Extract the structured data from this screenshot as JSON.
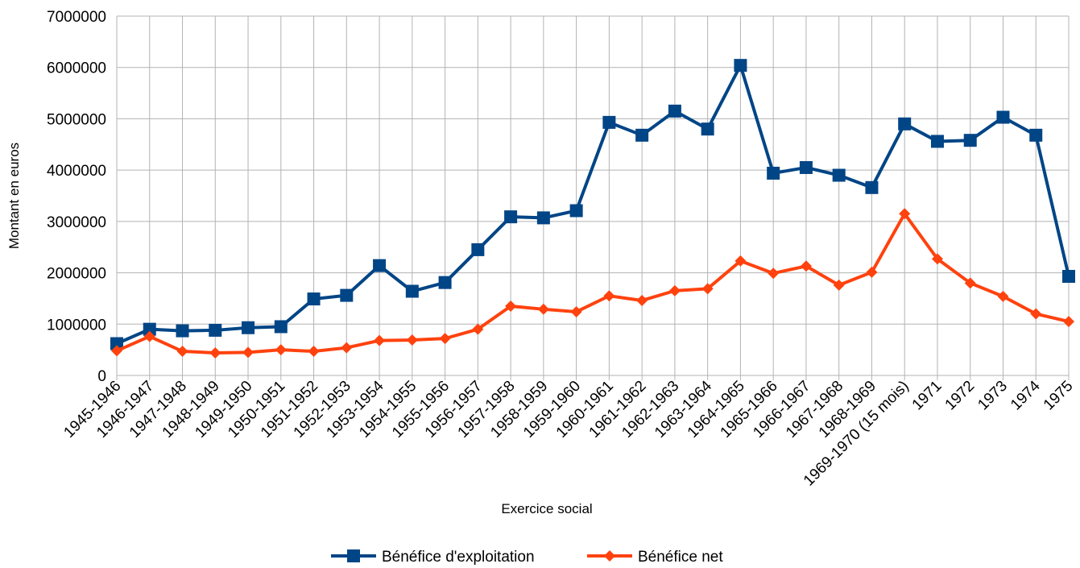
{
  "chart_data": {
    "type": "line",
    "title": "",
    "xlabel": "Exercice social",
    "ylabel": "Montant en euros",
    "ylim": [
      0,
      7000000
    ],
    "yticks": [
      "0",
      "1000000",
      "2000000",
      "3000000",
      "4000000",
      "5000000",
      "6000000",
      "7000000"
    ],
    "grid": true,
    "legend_position": "bottom",
    "categories": [
      "1945-1946",
      "1946-1947",
      "1947-1948",
      "1948-1949",
      "1949-1950",
      "1950-1951",
      "1951-1952",
      "1952-1953",
      "1953-1954",
      "1954-1955",
      "1955-1956",
      "1956-1957",
      "1957-1958",
      "1958-1959",
      "1959-1960",
      "1960-1961",
      "1961-1962",
      "1962-1963",
      "1963-1964",
      "1964-1965",
      "1965-1966",
      "1966-1967",
      "1967-1968",
      "1968-1969",
      "1969-1970 (15 mois)",
      "1971",
      "1972",
      "1973",
      "1974",
      "1975"
    ],
    "series": [
      {
        "name": "Bénéfice d'exploitation",
        "color": "#004586",
        "marker": "square",
        "values": [
          620000,
          900000,
          870000,
          880000,
          930000,
          950000,
          1490000,
          1560000,
          2140000,
          1640000,
          1810000,
          2450000,
          3090000,
          3070000,
          3210000,
          4930000,
          4680000,
          5150000,
          4800000,
          6040000,
          3940000,
          4050000,
          3900000,
          3660000,
          4900000,
          4560000,
          4580000,
          5030000,
          4680000,
          1930000
        ]
      },
      {
        "name": "Bénéfice net",
        "color": "#ff420e",
        "marker": "diamond",
        "values": [
          480000,
          760000,
          470000,
          440000,
          450000,
          500000,
          470000,
          540000,
          680000,
          690000,
          720000,
          900000,
          1350000,
          1290000,
          1240000,
          1550000,
          1460000,
          1650000,
          1690000,
          2230000,
          1990000,
          2130000,
          1760000,
          2010000,
          3150000,
          2270000,
          1800000,
          1540000,
          1200000,
          1050000
        ]
      }
    ]
  }
}
